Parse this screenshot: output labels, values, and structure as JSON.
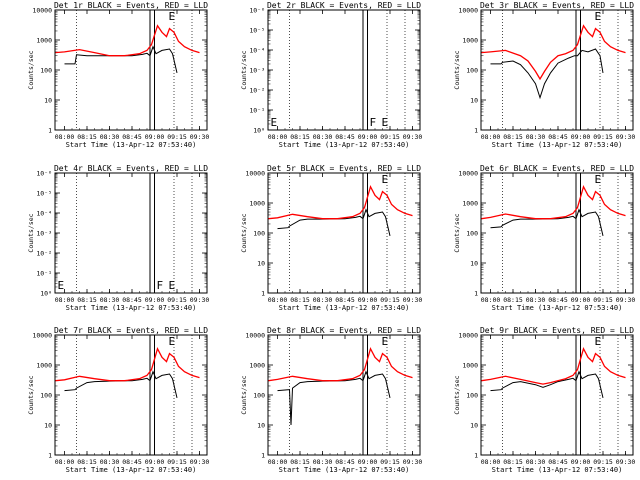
{
  "figure": {
    "colors": {
      "events": "#000000",
      "lld": "#ff0000",
      "background": "#ffffff"
    },
    "common": {
      "xlabel": "Start Time (13-Apr-12 07:53:40)",
      "ylabel": "Counts/sec",
      "x_ticks": [
        "08:00",
        "08:15",
        "08:30",
        "08:45",
        "09:00",
        "09:15",
        "09:30"
      ]
    }
  },
  "chart_data": [
    {
      "type": "line",
      "title": "Det 1r BLACK = Events, RED = LLD",
      "yscale": "log",
      "ylim": [
        1,
        10000
      ],
      "y_ticks": [
        "1",
        "10",
        "100",
        "1000",
        "10000"
      ],
      "vlines": [
        "08:08",
        "08:57",
        "09:00",
        "09:13",
        "09:25"
      ],
      "flags": [
        {
          "text": "E",
          "x": "09:08",
          "y": 10000
        }
      ],
      "series": [
        {
          "name": "Events",
          "color": "#000000",
          "x": [
            "08:00",
            "08:07",
            "08:08",
            "08:15",
            "08:20",
            "08:30",
            "08:45",
            "08:52",
            "08:55",
            "08:57",
            "08:59",
            "09:01",
            "09:05",
            "09:10",
            "09:12",
            "09:15"
          ],
          "y": [
            160,
            160,
            320,
            300,
            300,
            300,
            300,
            330,
            360,
            300,
            600,
            350,
            450,
            500,
            350,
            80
          ]
        },
        {
          "name": "LLD",
          "color": "#ff0000",
          "x": [
            "07:54",
            "08:00",
            "08:10",
            "08:20",
            "08:30",
            "08:40",
            "08:50",
            "08:55",
            "08:58",
            "09:02",
            "09:05",
            "09:08",
            "09:10",
            "09:13",
            "09:16",
            "09:20",
            "09:25",
            "09:30"
          ],
          "y": [
            380,
            400,
            480,
            380,
            300,
            300,
            350,
            450,
            700,
            3000,
            1800,
            1300,
            2400,
            1800,
            900,
            600,
            450,
            380
          ]
        }
      ]
    },
    {
      "type": "line",
      "title": "Det 2r BLACK = Events, RED = LLD",
      "yscale": "log",
      "ylim": [
        1,
        1e-06
      ],
      "y_ticks": [
        "10⁰",
        "10⁻¹",
        "10⁻²",
        "10⁻³",
        "10⁻⁴",
        "10⁻⁵",
        "10⁻⁶"
      ],
      "vlines": [
        "08:08",
        "08:57",
        "09:00",
        "09:13",
        "09:25"
      ],
      "flags": [
        {
          "text": "E",
          "x": "07:54",
          "y": 0.2
        },
        {
          "text": "F",
          "x": "09:00",
          "y": 0.2
        },
        {
          "text": "E",
          "x": "09:08",
          "y": 0.2
        }
      ],
      "series": []
    },
    {
      "type": "line",
      "title": "Det 3r BLACK = Events, RED = LLD",
      "yscale": "log",
      "ylim": [
        1,
        10000
      ],
      "y_ticks": [
        "1",
        "10",
        "100",
        "1000",
        "10000"
      ],
      "vlines": [
        "08:08",
        "08:57",
        "09:00",
        "09:13",
        "09:25"
      ],
      "flags": [
        {
          "text": "E",
          "x": "09:08",
          "y": 10000
        }
      ],
      "series": [
        {
          "name": "Events",
          "color": "#000000",
          "x": [
            "08:00",
            "08:07",
            "08:08",
            "08:15",
            "08:20",
            "08:25",
            "08:30",
            "08:33",
            "08:36",
            "08:40",
            "08:45",
            "08:52",
            "08:56",
            "08:58",
            "09:01",
            "09:05",
            "09:10",
            "09:13",
            "09:15"
          ],
          "y": [
            160,
            160,
            180,
            200,
            150,
            80,
            35,
            12,
            35,
            80,
            170,
            250,
            300,
            300,
            450,
            400,
            500,
            300,
            80
          ]
        },
        {
          "name": "LLD",
          "color": "#ff0000",
          "x": [
            "07:54",
            "08:00",
            "08:10",
            "08:20",
            "08:25",
            "08:30",
            "08:33",
            "08:36",
            "08:40",
            "08:45",
            "08:50",
            "08:55",
            "08:58",
            "09:02",
            "09:05",
            "09:08",
            "09:10",
            "09:13",
            "09:16",
            "09:20",
            "09:25",
            "09:30"
          ],
          "y": [
            380,
            400,
            450,
            300,
            200,
            90,
            50,
            90,
            180,
            300,
            350,
            450,
            700,
            3000,
            1800,
            1300,
            2400,
            1800,
            900,
            600,
            450,
            380
          ]
        }
      ]
    },
    {
      "type": "line",
      "title": "Det 4r BLACK = Events, RED = LLD",
      "yscale": "log",
      "ylim": [
        1,
        1e-06
      ],
      "y_ticks": [
        "10⁰",
        "10⁻¹",
        "10⁻²",
        "10⁻³",
        "10⁻⁴",
        "10⁻⁵",
        "10⁻⁶"
      ],
      "vlines": [
        "08:08",
        "08:57",
        "09:00",
        "09:13",
        "09:25"
      ],
      "flags": [
        {
          "text": "E",
          "x": "07:54",
          "y": 0.2
        },
        {
          "text": "F",
          "x": "09:00",
          "y": 0.2
        },
        {
          "text": "E",
          "x": "09:08",
          "y": 0.2
        }
      ],
      "series": []
    },
    {
      "type": "line",
      "title": "Det 5r BLACK = Events, RED = LLD",
      "yscale": "log",
      "ylim": [
        1,
        10000
      ],
      "y_ticks": [
        "1",
        "10",
        "100",
        "1000",
        "10000"
      ],
      "vlines": [
        "08:08",
        "08:57",
        "09:00",
        "09:13",
        "09:25"
      ],
      "flags": [
        {
          "text": "E",
          "x": "09:08",
          "y": 10000
        }
      ],
      "series": [
        {
          "name": "Events",
          "color": "#000000",
          "x": [
            "08:00",
            "08:07",
            "08:08",
            "08:15",
            "08:20",
            "08:30",
            "08:45",
            "08:52",
            "08:55",
            "08:57",
            "08:59",
            "09:01",
            "09:05",
            "09:10",
            "09:12",
            "09:15"
          ],
          "y": [
            140,
            150,
            170,
            270,
            290,
            290,
            300,
            330,
            360,
            300,
            600,
            350,
            450,
            500,
            350,
            80
          ]
        },
        {
          "name": "LLD",
          "color": "#ff0000",
          "x": [
            "07:54",
            "08:00",
            "08:10",
            "08:20",
            "08:30",
            "08:40",
            "08:50",
            "08:55",
            "08:58",
            "09:02",
            "09:05",
            "09:08",
            "09:10",
            "09:13",
            "09:16",
            "09:20",
            "09:25",
            "09:30"
          ],
          "y": [
            300,
            320,
            420,
            350,
            300,
            300,
            350,
            450,
            700,
            3500,
            1800,
            1300,
            2400,
            1800,
            900,
            600,
            450,
            380
          ]
        }
      ]
    },
    {
      "type": "line",
      "title": "Det 6r BLACK = Events, RED = LLD",
      "yscale": "log",
      "ylim": [
        1,
        10000
      ],
      "y_ticks": [
        "1",
        "10",
        "100",
        "1000",
        "10000"
      ],
      "vlines": [
        "08:08",
        "08:57",
        "09:00",
        "09:13",
        "09:25"
      ],
      "flags": [
        {
          "text": "E",
          "x": "09:08",
          "y": 10000
        }
      ],
      "series": [
        {
          "name": "Events",
          "color": "#000000",
          "x": [
            "08:00",
            "08:07",
            "08:08",
            "08:15",
            "08:20",
            "08:30",
            "08:45",
            "08:52",
            "08:55",
            "08:57",
            "08:59",
            "09:01",
            "09:05",
            "09:10",
            "09:12",
            "09:15"
          ],
          "y": [
            150,
            160,
            180,
            270,
            290,
            290,
            300,
            330,
            360,
            300,
            600,
            350,
            450,
            500,
            350,
            80
          ]
        },
        {
          "name": "LLD",
          "color": "#ff0000",
          "x": [
            "07:54",
            "08:00",
            "08:10",
            "08:20",
            "08:30",
            "08:40",
            "08:50",
            "08:55",
            "08:58",
            "09:02",
            "09:05",
            "09:08",
            "09:10",
            "09:13",
            "09:16",
            "09:20",
            "09:25",
            "09:30"
          ],
          "y": [
            300,
            330,
            430,
            350,
            300,
            300,
            350,
            450,
            700,
            3500,
            1800,
            1300,
            2400,
            1800,
            900,
            600,
            450,
            380
          ]
        }
      ]
    },
    {
      "type": "line",
      "title": "Det 7r BLACK = Events, RED = LLD",
      "yscale": "log",
      "ylim": [
        1,
        10000
      ],
      "y_ticks": [
        "1",
        "10",
        "100",
        "1000",
        "10000"
      ],
      "vlines": [
        "08:08",
        "08:57",
        "09:00",
        "09:13",
        "09:25"
      ],
      "flags": [
        {
          "text": "E",
          "x": "09:08",
          "y": 10000
        }
      ],
      "series": [
        {
          "name": "Events",
          "color": "#000000",
          "x": [
            "08:00",
            "08:07",
            "08:08",
            "08:15",
            "08:20",
            "08:30",
            "08:45",
            "08:52",
            "08:55",
            "08:57",
            "08:59",
            "09:01",
            "09:05",
            "09:10",
            "09:12",
            "09:15"
          ],
          "y": [
            140,
            150,
            170,
            260,
            280,
            290,
            300,
            330,
            360,
            300,
            600,
            350,
            450,
            500,
            350,
            80
          ]
        },
        {
          "name": "LLD",
          "color": "#ff0000",
          "x": [
            "07:54",
            "08:00",
            "08:10",
            "08:20",
            "08:30",
            "08:40",
            "08:50",
            "08:55",
            "08:58",
            "09:02",
            "09:05",
            "09:08",
            "09:10",
            "09:13",
            "09:16",
            "09:20",
            "09:25",
            "09:30"
          ],
          "y": [
            300,
            320,
            420,
            350,
            300,
            300,
            350,
            450,
            700,
            3500,
            1800,
            1300,
            2400,
            1800,
            900,
            600,
            450,
            380
          ]
        }
      ]
    },
    {
      "type": "line",
      "title": "Det 8r BLACK = Events, RED = LLD",
      "yscale": "log",
      "ylim": [
        1,
        10000
      ],
      "y_ticks": [
        "1",
        "10",
        "100",
        "1000",
        "10000"
      ],
      "vlines": [
        "08:08",
        "08:57",
        "09:00",
        "09:13",
        "09:25"
      ],
      "flags": [
        {
          "text": "E",
          "x": "09:08",
          "y": 10000
        }
      ],
      "series": [
        {
          "name": "Events",
          "color": "#000000",
          "x": [
            "08:00",
            "08:07",
            "08:08",
            "08:09",
            "08:10",
            "08:15",
            "08:20",
            "08:30",
            "08:45",
            "08:52",
            "08:55",
            "08:57",
            "08:59",
            "09:01",
            "09:05",
            "09:10",
            "09:12",
            "09:15"
          ],
          "y": [
            140,
            150,
            150,
            10,
            170,
            260,
            280,
            290,
            300,
            330,
            360,
            300,
            600,
            350,
            450,
            500,
            350,
            80
          ]
        },
        {
          "name": "LLD",
          "color": "#ff0000",
          "x": [
            "07:54",
            "08:00",
            "08:10",
            "08:20",
            "08:30",
            "08:40",
            "08:50",
            "08:55",
            "08:58",
            "09:02",
            "09:05",
            "09:08",
            "09:10",
            "09:13",
            "09:16",
            "09:20",
            "09:25",
            "09:30"
          ],
          "y": [
            300,
            330,
            420,
            350,
            300,
            300,
            350,
            450,
            700,
            3500,
            1800,
            1300,
            2400,
            1800,
            900,
            600,
            450,
            380
          ]
        }
      ]
    },
    {
      "type": "line",
      "title": "Det 9r BLACK = Events, RED = LLD",
      "yscale": "log",
      "ylim": [
        1,
        10000
      ],
      "y_ticks": [
        "1",
        "10",
        "100",
        "1000",
        "10000"
      ],
      "vlines": [
        "08:08",
        "08:57",
        "09:00",
        "09:13",
        "09:25"
      ],
      "flags": [
        {
          "text": "E",
          "x": "09:08",
          "y": 10000
        }
      ],
      "series": [
        {
          "name": "Events",
          "color": "#000000",
          "x": [
            "08:00",
            "08:07",
            "08:08",
            "08:15",
            "08:20",
            "08:30",
            "08:35",
            "08:40",
            "08:45",
            "08:52",
            "08:55",
            "08:57",
            "08:59",
            "09:01",
            "09:05",
            "09:10",
            "09:12",
            "09:15"
          ],
          "y": [
            140,
            150,
            170,
            260,
            280,
            220,
            180,
            220,
            280,
            330,
            360,
            300,
            600,
            350,
            450,
            500,
            350,
            80
          ]
        },
        {
          "name": "LLD",
          "color": "#ff0000",
          "x": [
            "07:54",
            "08:00",
            "08:10",
            "08:20",
            "08:30",
            "08:35",
            "08:40",
            "08:50",
            "08:55",
            "08:58",
            "09:02",
            "09:05",
            "09:08",
            "09:10",
            "09:13",
            "09:16",
            "09:20",
            "09:25",
            "09:30"
          ],
          "y": [
            300,
            330,
            420,
            330,
            260,
            230,
            260,
            350,
            450,
            700,
            3500,
            1800,
            1300,
            2400,
            1800,
            900,
            600,
            450,
            380
          ]
        }
      ]
    }
  ]
}
